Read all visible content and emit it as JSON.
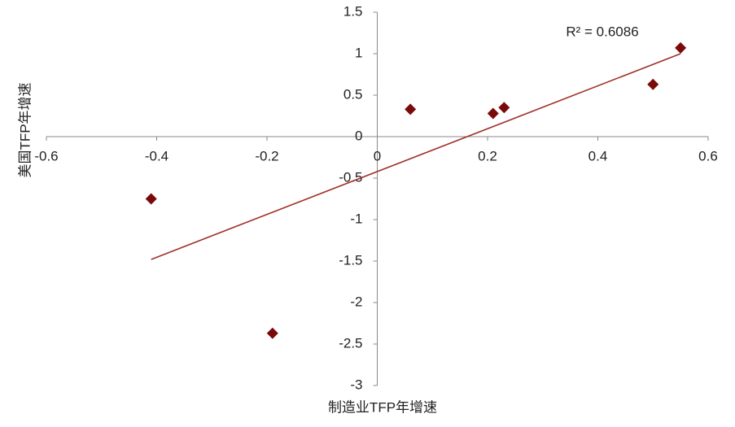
{
  "chart_data": {
    "type": "scatter",
    "x_label": "制造业TFP年增速",
    "y_label": "美国TFP年增速",
    "series": [
      {
        "color": "#7a0a0a",
        "x": [
          -0.41,
          -0.19,
          0.06,
          0.21,
          0.23,
          0.5,
          0.55
        ],
        "values": [
          -0.75,
          -2.37,
          0.33,
          0.28,
          0.35,
          0.63,
          1.07
        ]
      }
    ],
    "trendline": {
      "color": "#a0302a",
      "x": [
        -0.41,
        0.55
      ],
      "y": [
        -1.48,
        1.0
      ],
      "label": "R² = 0.6086"
    },
    "xlim": [
      -0.6,
      0.6
    ],
    "xticks": [
      -0.6,
      -0.4,
      -0.2,
      0,
      0.2,
      0.4,
      0.6
    ],
    "ylim": [
      -3,
      1.5
    ],
    "yticks": [
      1.5,
      1,
      0.5,
      0,
      -0.5,
      -1,
      -1.5,
      -2,
      -2.5,
      -3
    ]
  }
}
